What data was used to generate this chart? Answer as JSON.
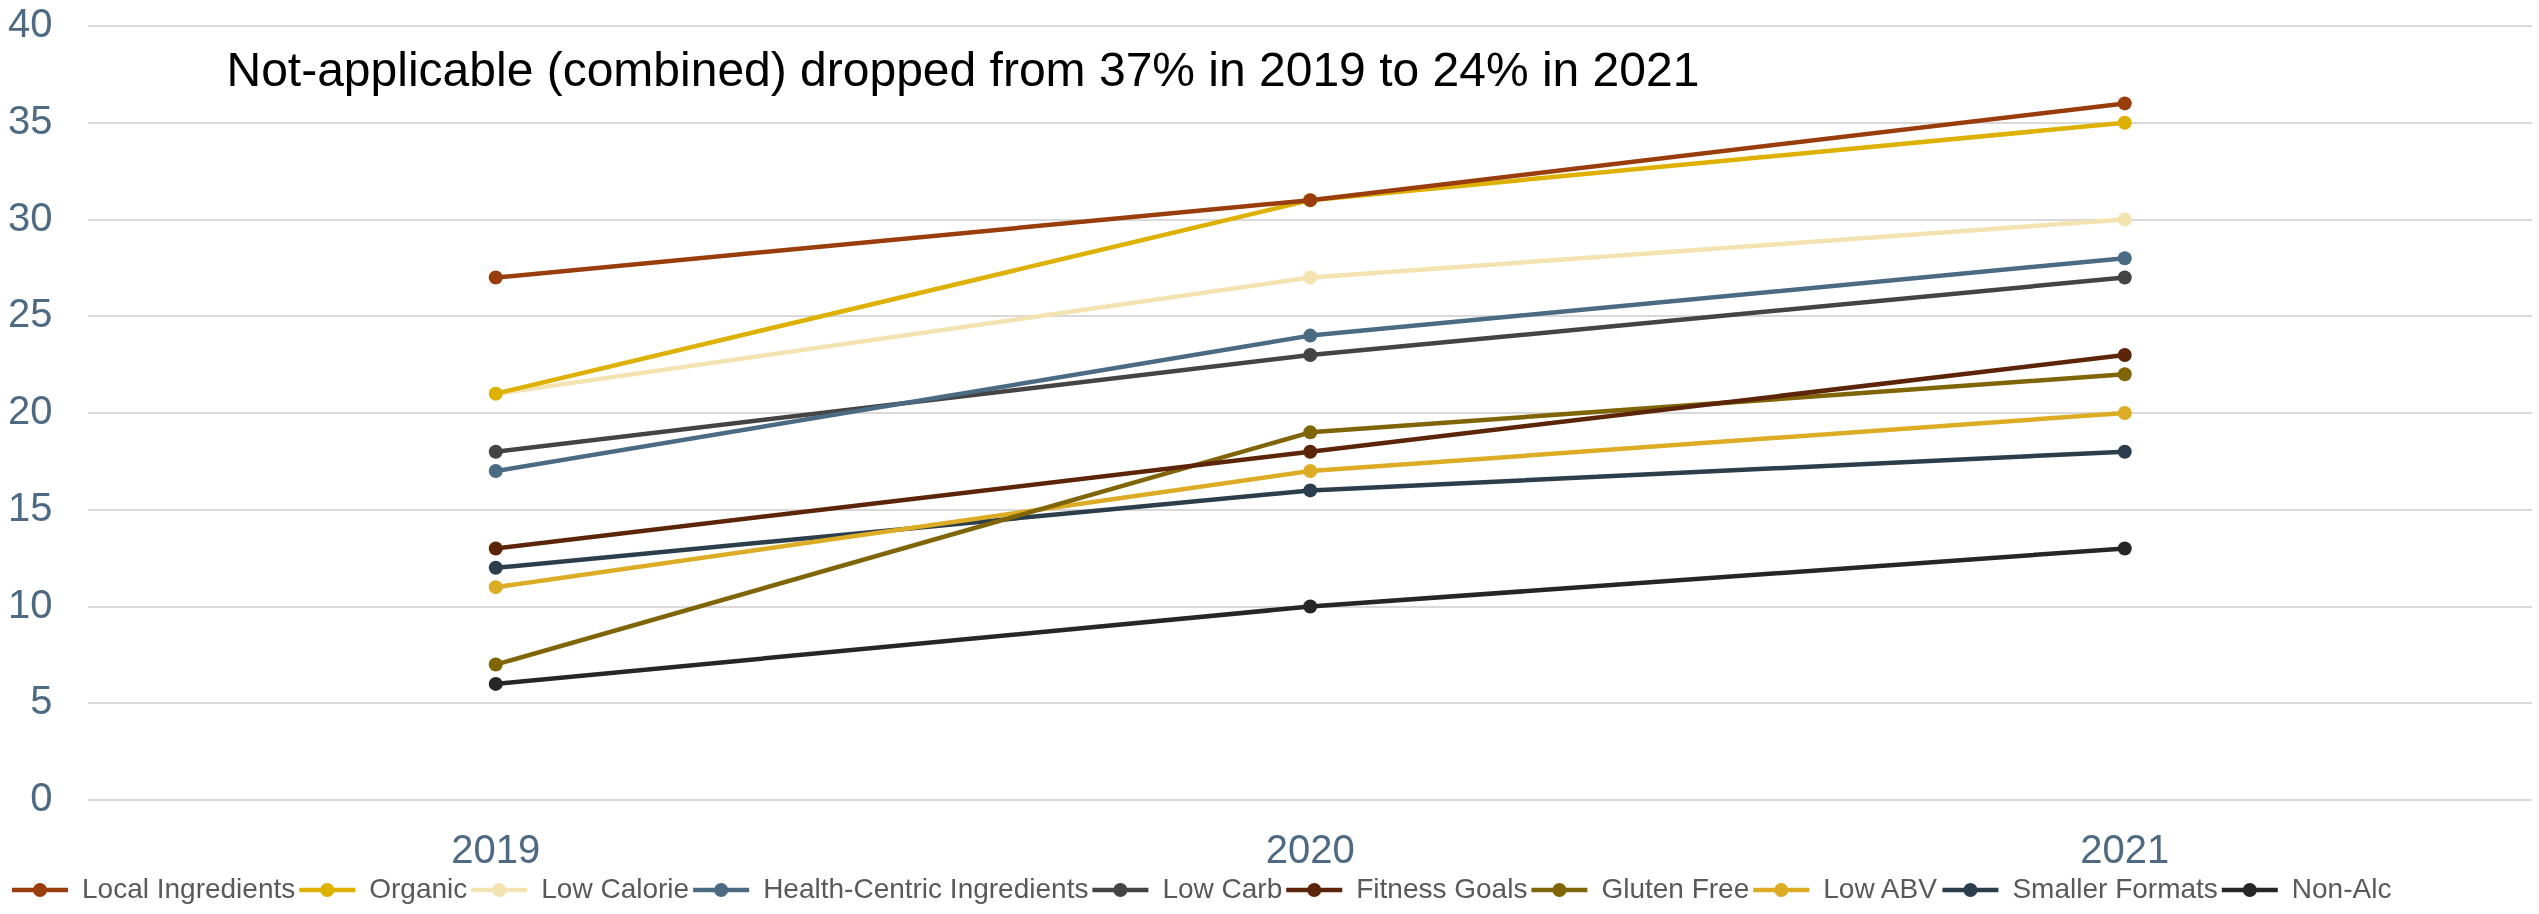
{
  "chart_data": {
    "type": "line",
    "annotations": [
      "Not-applicable (combined) dropped from 37% in 2019 to 24% in 2021"
    ],
    "categories": [
      "2019",
      "2020",
      "2021"
    ],
    "series": [
      {
        "name": "Local Ingredients",
        "color": "#993d0c",
        "values": [
          27,
          31,
          36
        ]
      },
      {
        "name": "Organic",
        "color": "#deb100",
        "values": [
          21,
          31,
          35
        ]
      },
      {
        "name": "Low Calorie",
        "color": "#f3e3b1",
        "values": [
          21,
          27,
          30
        ]
      },
      {
        "name": "Health-Centric Ingredients",
        "color": "#4a6b82",
        "values": [
          17,
          24,
          28
        ]
      },
      {
        "name": "Low Carb",
        "color": "#444444",
        "values": [
          18,
          23,
          27
        ]
      },
      {
        "name": "Fitness Goals",
        "color": "#5c2408",
        "values": [
          13,
          18,
          23
        ]
      },
      {
        "name": "Gluten Free",
        "color": "#7f6508",
        "values": [
          7,
          19,
          22
        ]
      },
      {
        "name": "Low ABV",
        "color": "#dcac25",
        "values": [
          11,
          17,
          20
        ]
      },
      {
        "name": "Smaller Formats",
        "color": "#2c3e4c",
        "values": [
          12,
          16,
          18
        ]
      },
      {
        "name": "Non-Alc",
        "color": "#262626",
        "values": [
          6,
          10,
          13
        ]
      }
    ],
    "ylim": [
      0,
      40
    ],
    "yticks": [
      0,
      5,
      10,
      15,
      20,
      25,
      30,
      35,
      40
    ],
    "grid": "y",
    "legend": "bottom",
    "marker": "circle",
    "line_style": "solid"
  }
}
